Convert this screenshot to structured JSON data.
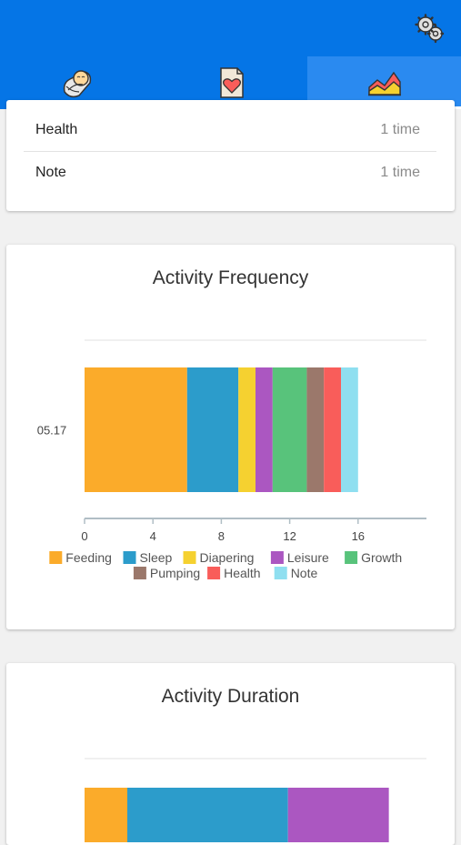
{
  "tabs": [
    {
      "name": "baby",
      "icon": "baby-icon"
    },
    {
      "name": "health",
      "icon": "heart-card-icon"
    },
    {
      "name": "stats",
      "icon": "area-chart-icon",
      "active": true
    }
  ],
  "summary": {
    "rows": [
      {
        "label": "Health",
        "value": "1 time"
      },
      {
        "label": "Note",
        "value": "1 time"
      }
    ]
  },
  "colors": {
    "Feeding": "#fbab2a",
    "Sleep": "#2c9ccb",
    "Diapering": "#f5d130",
    "Leisure": "#ab57c1",
    "Growth": "#58c37b",
    "Pumping": "#9b786b",
    "Health": "#f95d5a",
    "Note": "#8fdff0"
  },
  "chart_data": [
    {
      "type": "bar",
      "orientation": "horizontal",
      "stacked": true,
      "title": "Activity Frequency",
      "categories": [
        "05.17"
      ],
      "series": [
        {
          "name": "Feeding",
          "values": [
            6
          ]
        },
        {
          "name": "Sleep",
          "values": [
            3
          ]
        },
        {
          "name": "Diapering",
          "values": [
            1
          ]
        },
        {
          "name": "Leisure",
          "values": [
            1
          ]
        },
        {
          "name": "Growth",
          "values": [
            2
          ]
        },
        {
          "name": "Pumping",
          "values": [
            1
          ]
        },
        {
          "name": "Health",
          "values": [
            1
          ]
        },
        {
          "name": "Note",
          "values": [
            1
          ]
        }
      ],
      "xticks": [
        "0",
        "4",
        "8",
        "12",
        "16"
      ],
      "xlim": [
        0,
        20
      ],
      "legend": "bottom"
    },
    {
      "type": "bar",
      "orientation": "horizontal",
      "stacked": true,
      "title": "Activity Duration",
      "series": [
        {
          "name": "Feeding",
          "values": [
            2.5
          ]
        },
        {
          "name": "Sleep",
          "values": [
            9.4
          ]
        },
        {
          "name": "Leisure",
          "values": [
            5.9
          ]
        }
      ],
      "xlim": [
        0,
        20
      ]
    }
  ]
}
